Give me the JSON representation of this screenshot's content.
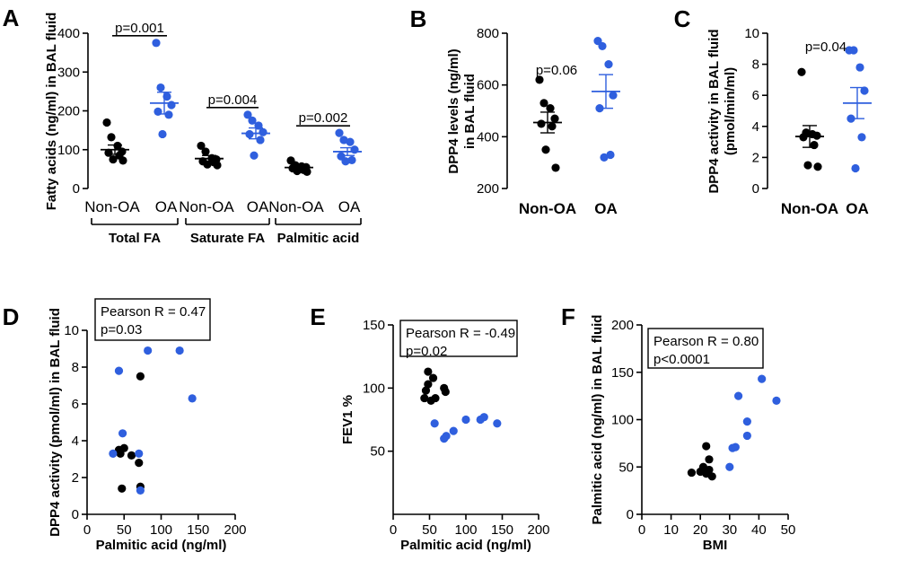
{
  "colors": {
    "nonoa": "#000000",
    "oa": "#2f5fde"
  },
  "chart_data": [
    {
      "panel": "A",
      "type": "scatter",
      "ylabel": "Fatty acids (ng/ml) in BAL fluid",
      "ylim": [
        0,
        400
      ],
      "yticks": [
        0,
        100,
        200,
        300,
        400
      ],
      "groups": [
        {
          "label": "Total FA",
          "p": "p=0.001",
          "non_oa": {
            "label": "Non-OA",
            "values": [
              170,
              132,
              110,
              95,
              92,
              85,
              75,
              72
            ],
            "mean": 100,
            "sem": 12
          },
          "oa": {
            "label": "OA",
            "values": [
              375,
              260,
              237,
              215,
              198,
              190,
              140
            ],
            "mean": 220,
            "sem": 28
          }
        },
        {
          "label": "Saturate FA",
          "p": "p=0.004",
          "non_oa": {
            "label": "Non-OA",
            "values": [
              110,
              95,
              78,
              75,
              70,
              68,
              62,
              60
            ],
            "mean": 77,
            "sem": 8
          },
          "oa": {
            "label": "OA",
            "values": [
              190,
              175,
              162,
              145,
              140,
              125,
              85
            ],
            "mean": 142,
            "sem": 14
          }
        },
        {
          "label": "Palmitic acid",
          "p": "p=0.002",
          "non_oa": {
            "label": "Non-OA",
            "values": [
              72,
              60,
              57,
              55,
              52,
              48,
              45,
              43
            ],
            "mean": 54,
            "sem": 4
          },
          "oa": {
            "label": "OA",
            "values": [
              143,
              125,
              120,
              100,
              83,
              73,
              70
            ],
            "mean": 95,
            "sem": 10
          }
        }
      ]
    },
    {
      "panel": "B",
      "type": "scatter",
      "ylabel_lines": [
        "DPP4 levels (ng/ml)",
        "in BAL fluid"
      ],
      "ylim": [
        200,
        800
      ],
      "yticks": [
        200,
        400,
        600,
        800
      ],
      "p": "p=0.06",
      "non_oa": {
        "label": "Non-OA",
        "values": [
          620,
          530,
          510,
          470,
          450,
          440,
          350,
          280
        ],
        "mean": 455,
        "sem": 40
      },
      "oa": {
        "label": "OA",
        "values": [
          770,
          750,
          680,
          560,
          510,
          330,
          320
        ],
        "mean": 575,
        "sem": 65
      }
    },
    {
      "panel": "C",
      "type": "scatter",
      "ylabel_lines": [
        "DPP4 activity in BAL fluid",
        "(pmol/min/ml)"
      ],
      "ylim": [
        0,
        10
      ],
      "yticks": [
        0,
        2,
        4,
        6,
        8,
        10
      ],
      "p": "p=0.04",
      "non_oa": {
        "label": "Non-OA",
        "values": [
          7.5,
          3.6,
          3.5,
          3.4,
          3.3,
          2.8,
          1.5,
          1.4
        ],
        "mean": 3.35,
        "sem": 0.7
      },
      "oa": {
        "label": "OA",
        "values": [
          8.9,
          8.9,
          7.8,
          6.3,
          4.5,
          3.3,
          1.3
        ],
        "mean": 5.5,
        "sem": 1.0
      }
    },
    {
      "panel": "D",
      "type": "scatter",
      "xlabel": "Palmitic acid (ng/ml)",
      "ylabel": "DPP4 activity (pmol/ml) in BAL fluid",
      "xlim": [
        0,
        200
      ],
      "ylim": [
        0,
        10
      ],
      "xticks": [
        0,
        50,
        100,
        150,
        200
      ],
      "yticks": [
        0,
        2,
        4,
        6,
        8,
        10
      ],
      "annotation": [
        "Pearson R = 0.47",
        "p=0.03"
      ],
      "non_oa_points": [
        [
          43,
          3.5
        ],
        [
          45,
          3.3
        ],
        [
          47,
          1.4
        ],
        [
          50,
          3.6
        ],
        [
          60,
          3.2
        ],
        [
          70,
          2.8
        ],
        [
          72,
          7.5
        ],
        [
          72,
          1.5
        ]
      ],
      "oa_points": [
        [
          35,
          3.3
        ],
        [
          43,
          7.8
        ],
        [
          48,
          4.4
        ],
        [
          70,
          3.3
        ],
        [
          72,
          1.3
        ],
        [
          82,
          8.9
        ],
        [
          125,
          8.9
        ],
        [
          142,
          6.3
        ]
      ]
    },
    {
      "panel": "E",
      "type": "scatter",
      "xlabel": "Palmitic acid (ng/ml)",
      "ylabel": "FEV1 %",
      "xlim": [
        0,
        200
      ],
      "ylim": [
        0,
        150
      ],
      "xticks": [
        0,
        50,
        100,
        150,
        200
      ],
      "yticks": [
        50,
        100,
        150
      ],
      "annotation": [
        "Pearson R = -0.49",
        "p=0.02"
      ],
      "non_oa_points": [
        [
          43,
          92
        ],
        [
          45,
          98
        ],
        [
          48,
          103
        ],
        [
          48,
          113
        ],
        [
          52,
          90
        ],
        [
          55,
          108
        ],
        [
          58,
          92
        ],
        [
          70,
          100
        ],
        [
          72,
          97
        ]
      ],
      "oa_points": [
        [
          57,
          72
        ],
        [
          70,
          60
        ],
        [
          73,
          62
        ],
        [
          83,
          66
        ],
        [
          100,
          75
        ],
        [
          120,
          75
        ],
        [
          125,
          77
        ],
        [
          143,
          72
        ]
      ]
    },
    {
      "panel": "F",
      "type": "scatter",
      "xlabel": "BMI",
      "ylabel": "Palmitic acid (ng/ml) in BAL fluid",
      "xlim": [
        0,
        50
      ],
      "ylim": [
        0,
        200
      ],
      "xticks": [
        0,
        10,
        20,
        30,
        40,
        50
      ],
      "yticks": [
        0,
        50,
        100,
        150,
        200
      ],
      "annotation": [
        "Pearson R = 0.80",
        "p<0.0001"
      ],
      "non_oa_points": [
        [
          17,
          44
        ],
        [
          20,
          45
        ],
        [
          21,
          50
        ],
        [
          22,
          72
        ],
        [
          22,
          43
        ],
        [
          23,
          58
        ],
        [
          23,
          47
        ],
        [
          24,
          40
        ]
      ],
      "oa_points": [
        [
          30,
          50
        ],
        [
          31,
          70
        ],
        [
          32,
          71
        ],
        [
          33,
          125
        ],
        [
          36,
          98
        ],
        [
          36,
          83
        ],
        [
          41,
          143
        ],
        [
          46,
          120
        ]
      ]
    }
  ]
}
